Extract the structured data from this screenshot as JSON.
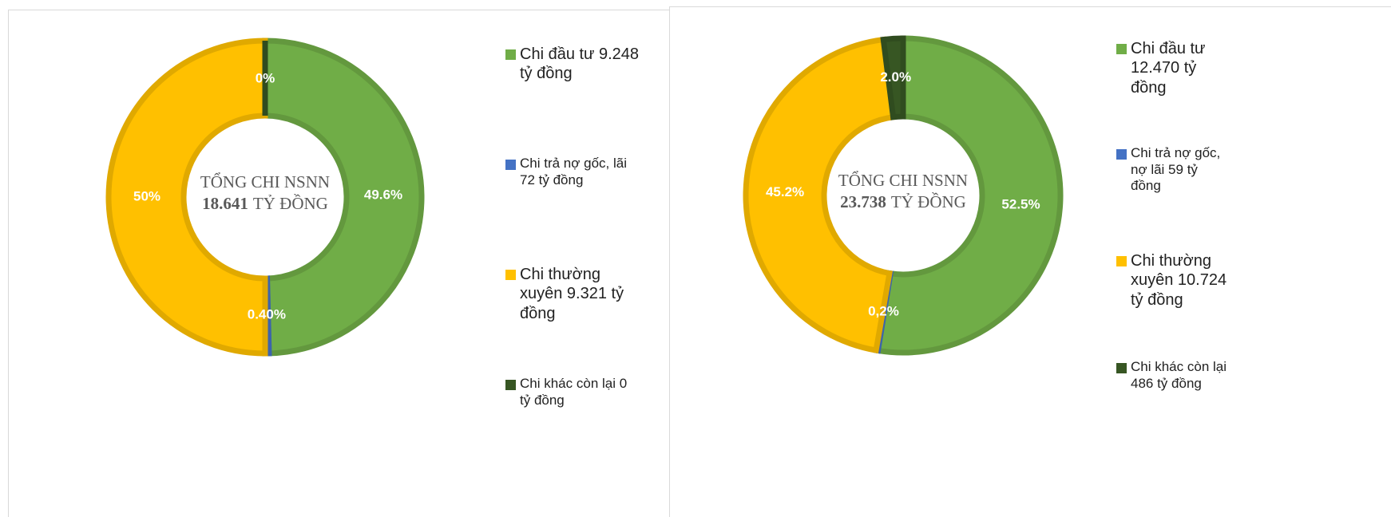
{
  "chart_data": [
    {
      "type": "pie",
      "donut": true,
      "center_title": "TỔNG CHI NSNN",
      "center_value": "18.641",
      "center_unit": "TỶ ĐỒNG",
      "categories": [
        "Chi đầu tư 9.248 tỷ đồng",
        "Chi trả nợ gốc, lãi 72 tỷ đồng",
        "Chi thường xuyên 9.321 tỷ đồng",
        "Chi khác còn lại 0 tỷ đồng"
      ],
      "values": [
        49.6,
        0.4,
        50,
        0
      ],
      "value_labels": [
        "49.6%",
        "0.40%",
        "50%",
        "0%"
      ],
      "colors": [
        "#70ad47",
        "#4472c4",
        "#ffc000",
        "#375623"
      ]
    },
    {
      "type": "pie",
      "donut": true,
      "center_title": "TỔNG CHI NSNN",
      "center_value": "23.738",
      "center_unit": "TỶ ĐỒNG",
      "categories": [
        "Chi đầu tư 12.470 tỷ đồng",
        "Chi trả nợ gốc, nợ lãi 59 tỷ đồng",
        "Chi thường xuyên 10.724 tỷ đồng",
        "Chi khác còn lại 486 tỷ đồng"
      ],
      "values": [
        52.5,
        0.2,
        45.2,
        2.0
      ],
      "value_labels": [
        "52.5%",
        "0,2%",
        "45.2%",
        "2.0%"
      ],
      "colors": [
        "#70ad47",
        "#4472c4",
        "#ffc000",
        "#375623"
      ]
    }
  ]
}
